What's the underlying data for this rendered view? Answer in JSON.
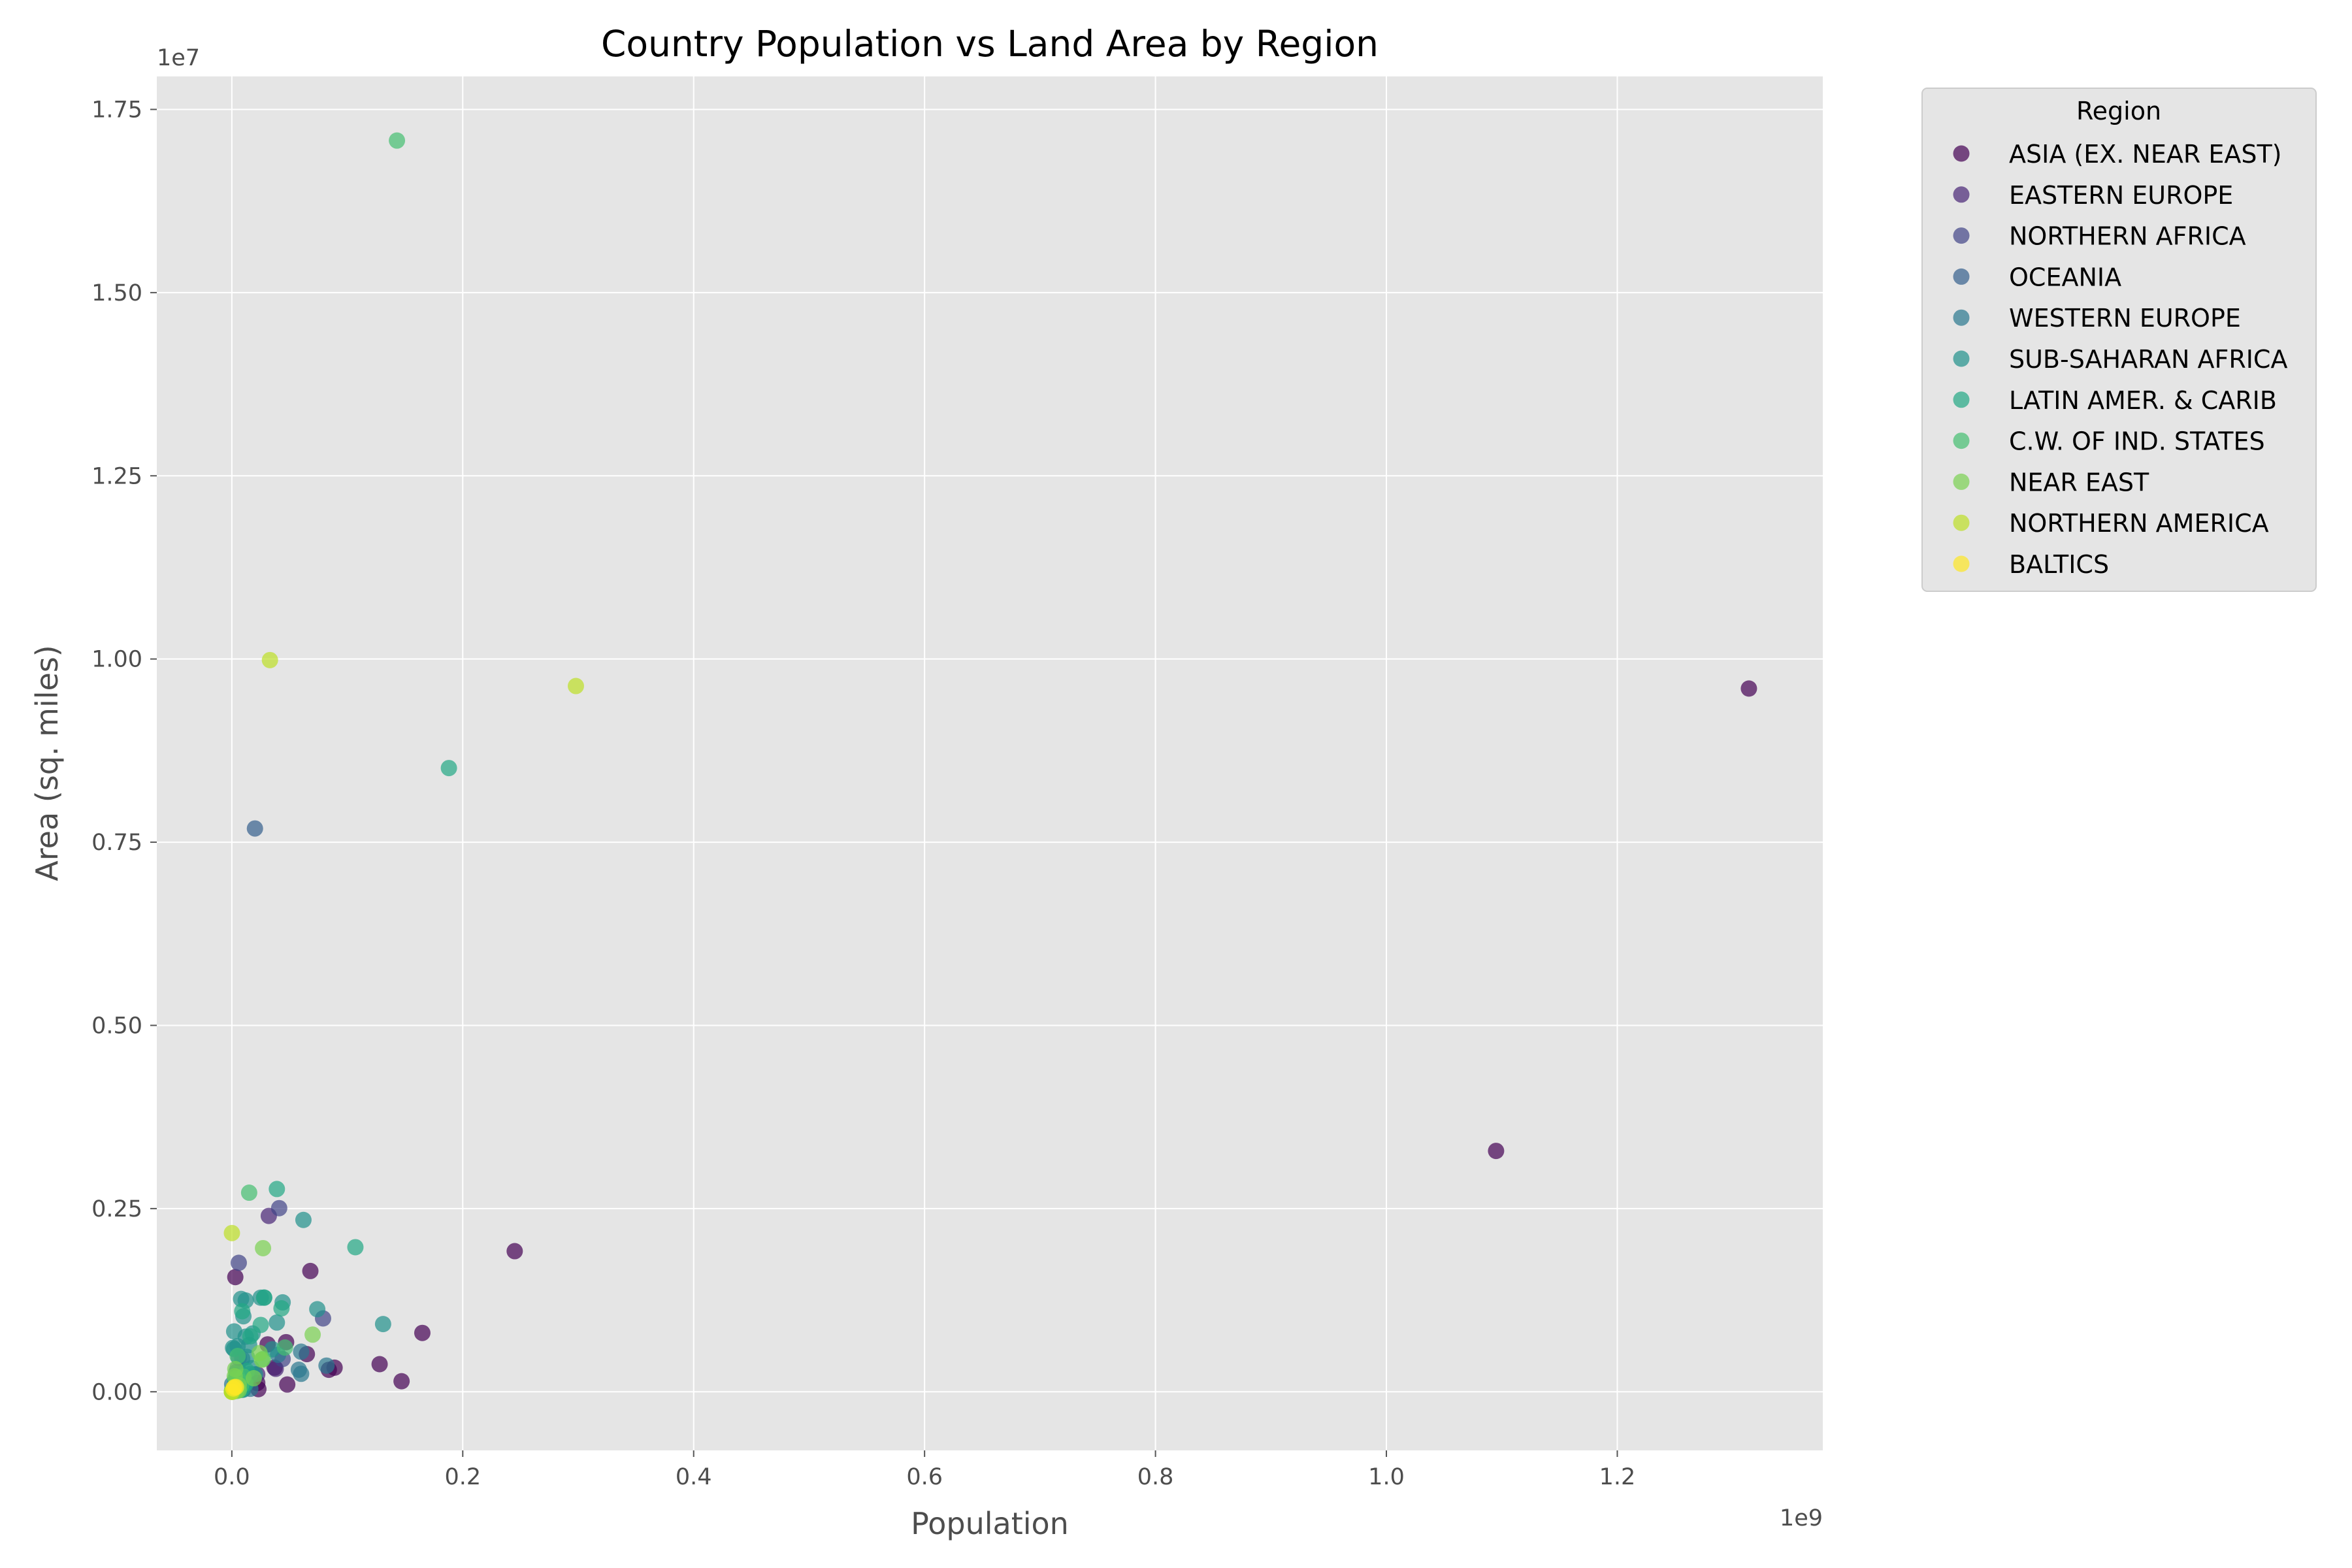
{
  "chart_data": {
    "type": "scatter",
    "title": "Country Population vs Land Area by Region",
    "xlabel": "Population",
    "ylabel": "Area (sq. miles)",
    "x_offset_label": "1e9",
    "y_offset_label": "1e7",
    "xlim": [
      -65000000,
      1378000000
    ],
    "ylim": [
      -800000,
      17950000
    ],
    "x_ticks": [
      0.0,
      0.2,
      0.4,
      0.6,
      0.8,
      1.0,
      1.2
    ],
    "x_tick_labels": [
      "0.0",
      "0.2",
      "0.4",
      "0.6",
      "0.8",
      "1.0",
      "1.2"
    ],
    "y_ticks": [
      0.0,
      0.25,
      0.5,
      0.75,
      1.0,
      1.25,
      1.5,
      1.75
    ],
    "y_tick_labels": [
      "0.00",
      "0.25",
      "0.50",
      "0.75",
      "1.00",
      "1.25",
      "1.50",
      "1.75"
    ],
    "grid": true,
    "legend": {
      "title": "Region",
      "placement": "outside-upper-right"
    },
    "series": [
      {
        "name": "ASIA (EX. NEAR EAST)",
        "color": "#440154",
        "points": [
          [
            1314000000,
            9597000
          ],
          [
            1095000000,
            3287000
          ],
          [
            245000000,
            1919000
          ],
          [
            165000000,
            803000
          ],
          [
            147000000,
            144000
          ],
          [
            128000000,
            377000
          ],
          [
            89000000,
            329000
          ],
          [
            84000000,
            300000
          ],
          [
            65000000,
            514000
          ],
          [
            68000000,
            1648000
          ],
          [
            48000000,
            99000
          ],
          [
            47000000,
            677000
          ],
          [
            37000000,
            330000
          ],
          [
            31000000,
            647000
          ],
          [
            23000000,
            36000
          ],
          [
            22000000,
            120000
          ],
          [
            3000000,
            1565000
          ],
          [
            14000000,
            181000
          ],
          [
            9000000,
            148000
          ],
          [
            6000000,
            237000
          ]
        ]
      },
      {
        "name": "EASTERN EUROPE",
        "color": "#482576",
        "points": [
          [
            38000000,
            313000
          ],
          [
            32000000,
            2400000
          ],
          [
            22000000,
            238000
          ],
          [
            10000000,
            93000
          ],
          [
            10000000,
            79000
          ],
          [
            7000000,
            111000
          ],
          [
            5000000,
            49000
          ],
          [
            4500000,
            57000
          ],
          [
            4500000,
            51000
          ],
          [
            2000000,
            20000
          ],
          [
            9000000,
            88000
          ],
          [
            4000000,
            29000
          ]
        ]
      },
      {
        "name": "NORTHERN AFRICA",
        "color": "#414487",
        "points": [
          [
            79000000,
            1001000
          ],
          [
            44000000,
            447000
          ],
          [
            6000000,
            1760000
          ],
          [
            10000000,
            164000
          ],
          [
            41000000,
            2506000
          ]
        ]
      },
      {
        "name": "OCEANIA",
        "color": "#35608D",
        "points": [
          [
            20000000,
            7687000
          ],
          [
            4000000,
            269000
          ],
          [
            6000000,
            463000
          ],
          [
            1000000,
            18000
          ],
          [
            500000,
            29000
          ],
          [
            200000,
            12000
          ],
          [
            100000,
            2800
          ]
        ]
      },
      {
        "name": "WESTERN EUROPE",
        "color": "#2A788E",
        "points": [
          [
            82000000,
            357000
          ],
          [
            60000000,
            547000
          ],
          [
            60000000,
            245000
          ],
          [
            58000000,
            301000
          ],
          [
            40000000,
            505000
          ],
          [
            16000000,
            41000
          ],
          [
            10000000,
            31000
          ],
          [
            10000000,
            92000
          ],
          [
            9000000,
            450000
          ],
          [
            8000000,
            84000
          ],
          [
            7000000,
            41000
          ],
          [
            5000000,
            43000
          ],
          [
            5000000,
            324000
          ],
          [
            4000000,
            70000
          ],
          [
            300000,
            103000
          ],
          [
            500000,
            2600
          ]
        ]
      },
      {
        "name": "SUB-SAHARAN AFRICA",
        "color": "#21918C",
        "points": [
          [
            131000000,
            924000
          ],
          [
            74000000,
            1127000
          ],
          [
            62000000,
            2345000
          ],
          [
            44000000,
            1220000
          ],
          [
            39000000,
            945000
          ],
          [
            35000000,
            580000
          ],
          [
            28000000,
            1285000
          ],
          [
            25000000,
            1284000
          ],
          [
            18000000,
            796000
          ],
          [
            16000000,
            241000
          ],
          [
            15000000,
            638000
          ],
          [
            12000000,
            1246000
          ],
          [
            12000000,
            752000
          ],
          [
            10000000,
            1030000
          ],
          [
            8000000,
            1267000
          ],
          [
            7000000,
            112000
          ],
          [
            5000000,
            622000
          ],
          [
            3000000,
            118000
          ],
          [
            2000000,
            582000
          ],
          [
            1600000,
            31000
          ],
          [
            1000000,
            600000
          ],
          [
            2000000,
            824000
          ],
          [
            17000000,
            322000
          ],
          [
            20000000,
            239000
          ],
          [
            13000000,
            476000
          ],
          [
            9000000,
            26000
          ],
          [
            6000000,
            57000
          ],
          [
            4000000,
            245000
          ]
        ]
      },
      {
        "name": "LATIN AMER. & CARIB",
        "color": "#22A884",
        "points": [
          [
            188000000,
            8512000
          ],
          [
            107000000,
            1973000
          ],
          [
            39000000,
            2767000
          ],
          [
            43000000,
            1139000
          ],
          [
            28000000,
            1285000
          ],
          [
            25000000,
            912000
          ],
          [
            13000000,
            283000
          ],
          [
            9000000,
            1099000
          ],
          [
            16000000,
            757000
          ],
          [
            12000000,
            109000
          ],
          [
            11000000,
            111000
          ],
          [
            8000000,
            28000
          ],
          [
            7000000,
            112000
          ],
          [
            6000000,
            21000
          ],
          [
            5000000,
            130000
          ],
          [
            3000000,
            176000
          ],
          [
            3000000,
            78000
          ],
          [
            1000000,
            5000
          ],
          [
            300000,
            22000
          ],
          [
            100000,
            500
          ]
        ]
      },
      {
        "name": "C.W. OF IND. STATES",
        "color": "#44BF70",
        "points": [
          [
            143000000,
            17075000
          ],
          [
            15000000,
            2717000
          ],
          [
            46000000,
            604000
          ],
          [
            27000000,
            447000
          ],
          [
            10000000,
            208000
          ],
          [
            8000000,
            87000
          ],
          [
            5000000,
            199000
          ],
          [
            7000000,
            143000
          ],
          [
            5000000,
            488000
          ],
          [
            4500000,
            34000
          ],
          [
            3000000,
            30000
          ],
          [
            4000000,
            70000
          ]
        ]
      },
      {
        "name": "NEAR EAST",
        "color": "#7AD151",
        "points": [
          [
            70000000,
            780000
          ],
          [
            27000000,
            1960000
          ],
          [
            26000000,
            437000
          ],
          [
            24000000,
            528000
          ],
          [
            19000000,
            185000
          ],
          [
            6000000,
            92000
          ],
          [
            6000000,
            21000
          ],
          [
            4000000,
            10000
          ],
          [
            3000000,
            310000
          ],
          [
            2500000,
            212000
          ],
          [
            2000000,
            18000
          ],
          [
            700000,
            700
          ]
        ]
      },
      {
        "name": "NORTHERN AMERICA",
        "color": "#BDDF26",
        "points": [
          [
            298000000,
            9631000
          ],
          [
            33000000,
            9985000
          ],
          [
            57000,
            2166000
          ],
          [
            65000,
            53
          ],
          [
            7000,
            242
          ]
        ]
      },
      {
        "name": "BALTICS",
        "color": "#FDE725",
        "points": [
          [
            3600000,
            65000
          ],
          [
            2300000,
            64000
          ],
          [
            1300000,
            45000
          ]
        ]
      }
    ]
  }
}
